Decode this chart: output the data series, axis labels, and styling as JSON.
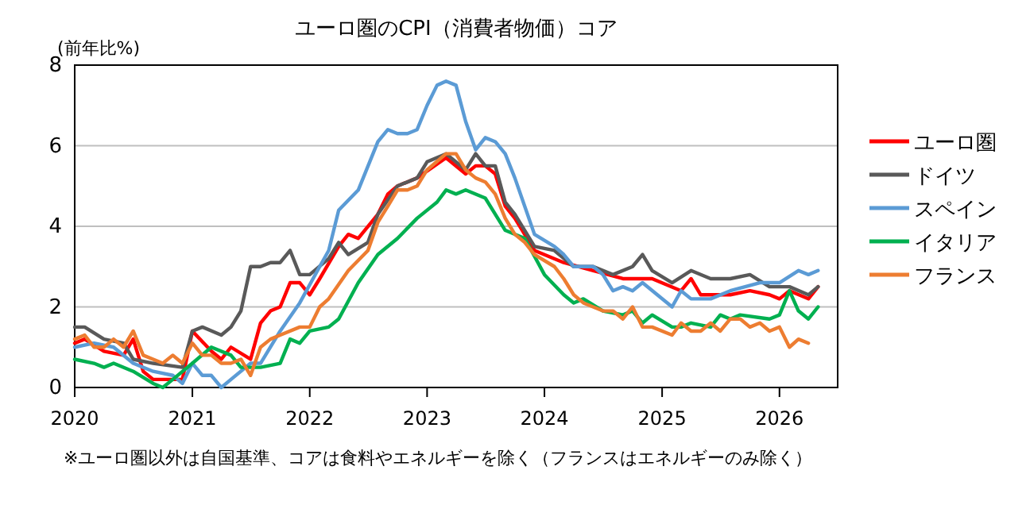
{
  "chart_data": {
    "type": "line",
    "title": "ユーロ圏のCPI（消費者物価）コア",
    "ylabel": "(前年比%)",
    "xlim": [
      "2020-01",
      "2026-07"
    ],
    "xticks": [
      "2020",
      "2021",
      "2022",
      "2023",
      "2024",
      "2025",
      "2026"
    ],
    "ylim": [
      0,
      8
    ],
    "yticks": [
      0,
      2,
      4,
      6,
      8
    ],
    "grid": "y",
    "legend": "right",
    "marker": "none",
    "line_style": "solid",
    "annotations": [
      "※ユーロ圏以外は自国基準、コアは食料やエネルギーを除く（フランスはエネルギーのみ除く）"
    ],
    "series": [
      {
        "name": "ユーロ圏",
        "color": "#ff0000",
        "x": [
          "2020-01",
          "2020-02",
          "2020-04",
          "2020-06",
          "2020-07",
          "2020-08",
          "2020-09",
          "2020-12",
          "2021-01",
          "2021-03",
          "2021-04",
          "2021-05",
          "2021-07",
          "2021-08",
          "2021-09",
          "2021-10",
          "2021-11",
          "2021-12",
          "2022-01",
          "2022-02",
          "2022-04",
          "2022-05",
          "2022-06",
          "2022-08",
          "2022-09",
          "2022-10",
          "2022-12",
          "2023-03",
          "2023-05",
          "2023-06",
          "2023-07",
          "2023-08",
          "2023-09",
          "2023-10",
          "2023-12",
          "2024-03",
          "2024-06",
          "2024-09",
          "2024-12",
          "2025-03",
          "2025-04",
          "2025-05",
          "2025-08",
          "2025-10",
          "2025-12",
          "2026-01",
          "2026-02",
          "2026-04",
          "2026-05"
        ],
        "values": [
          1.1,
          1.2,
          0.9,
          0.8,
          1.2,
          0.4,
          0.2,
          0.2,
          1.4,
          0.9,
          0.7,
          1.0,
          0.7,
          1.6,
          1.9,
          2.0,
          2.6,
          2.6,
          2.3,
          2.7,
          3.5,
          3.8,
          3.7,
          4.3,
          4.8,
          5.0,
          5.2,
          5.7,
          5.3,
          5.5,
          5.5,
          5.3,
          4.5,
          4.2,
          3.4,
          3.1,
          2.9,
          2.7,
          2.7,
          2.4,
          2.7,
          2.3,
          2.3,
          2.4,
          2.3,
          2.2,
          2.4,
          2.2,
          2.5
        ]
      },
      {
        "name": "ドイツ",
        "color": "#595959",
        "x": [
          "2020-01",
          "2020-02",
          "2020-04",
          "2020-06",
          "2020-07",
          "2020-09",
          "2020-12",
          "2021-01",
          "2021-02",
          "2021-04",
          "2021-05",
          "2021-06",
          "2021-07",
          "2021-08",
          "2021-09",
          "2021-10",
          "2021-11",
          "2021-12",
          "2022-01",
          "2022-03",
          "2022-04",
          "2022-05",
          "2022-07",
          "2022-08",
          "2022-10",
          "2022-12",
          "2023-01",
          "2023-03",
          "2023-05",
          "2023-06",
          "2023-07",
          "2023-08",
          "2023-09",
          "2023-10",
          "2023-12",
          "2024-02",
          "2024-04",
          "2024-06",
          "2024-08",
          "2024-10",
          "2024-11",
          "2024-12",
          "2025-02",
          "2025-04",
          "2025-06",
          "2025-08",
          "2025-10",
          "2025-12",
          "2026-02",
          "2026-04",
          "2026-05"
        ],
        "values": [
          1.5,
          1.5,
          1.2,
          1.1,
          0.7,
          0.6,
          0.5,
          1.4,
          1.5,
          1.3,
          1.5,
          1.9,
          3.0,
          3.0,
          3.1,
          3.1,
          3.4,
          2.8,
          2.8,
          3.2,
          3.6,
          3.3,
          3.6,
          4.3,
          5.0,
          5.2,
          5.6,
          5.8,
          5.4,
          5.8,
          5.5,
          5.5,
          4.6,
          4.3,
          3.5,
          3.4,
          3.0,
          3.0,
          2.8,
          3.0,
          3.3,
          2.9,
          2.6,
          2.9,
          2.7,
          2.7,
          2.8,
          2.5,
          2.5,
          2.3,
          2.5
        ]
      },
      {
        "name": "スペイン",
        "color": "#5b9bd5",
        "x": [
          "2020-01",
          "2020-03",
          "2020-05",
          "2020-07",
          "2020-09",
          "2020-11",
          "2020-12",
          "2021-01",
          "2021-02",
          "2021-03",
          "2021-04",
          "2021-05",
          "2021-07",
          "2021-08",
          "2021-10",
          "2021-12",
          "2022-02",
          "2022-03",
          "2022-04",
          "2022-06",
          "2022-08",
          "2022-09",
          "2022-10",
          "2022-11",
          "2022-12",
          "2023-01",
          "2023-02",
          "2023-03",
          "2023-04",
          "2023-05",
          "2023-06",
          "2023-07",
          "2023-08",
          "2023-09",
          "2023-10",
          "2023-12",
          "2024-02",
          "2024-03",
          "2024-04",
          "2024-06",
          "2024-07",
          "2024-08",
          "2024-09",
          "2024-10",
          "2024-11",
          "2025-02",
          "2025-03",
          "2025-04",
          "2025-06",
          "2025-08",
          "2025-11",
          "2026-01",
          "2026-03",
          "2026-04",
          "2026-05"
        ],
        "values": [
          1.0,
          1.1,
          1.0,
          0.6,
          0.4,
          0.3,
          0.1,
          0.6,
          0.3,
          0.3,
          0.0,
          0.2,
          0.6,
          0.6,
          1.4,
          2.1,
          3.0,
          3.4,
          4.4,
          4.9,
          6.1,
          6.4,
          6.3,
          6.3,
          6.4,
          7.0,
          7.5,
          7.6,
          7.5,
          6.6,
          5.9,
          6.2,
          6.1,
          5.8,
          5.2,
          3.8,
          3.5,
          3.3,
          3.0,
          3.0,
          2.8,
          2.4,
          2.5,
          2.4,
          2.6,
          2.0,
          2.4,
          2.2,
          2.2,
          2.4,
          2.6,
          2.6,
          2.9,
          2.8,
          2.9
        ]
      },
      {
        "name": "イタリア",
        "color": "#00b050",
        "x": [
          "2020-01",
          "2020-03",
          "2020-04",
          "2020-05",
          "2020-07",
          "2020-09",
          "2020-10",
          "2020-11",
          "2021-01",
          "2021-03",
          "2021-05",
          "2021-06",
          "2021-08",
          "2021-10",
          "2021-11",
          "2021-12",
          "2022-01",
          "2022-03",
          "2022-04",
          "2022-06",
          "2022-08",
          "2022-10",
          "2022-12",
          "2023-02",
          "2023-03",
          "2023-04",
          "2023-05",
          "2023-07",
          "2023-09",
          "2023-11",
          "2024-01",
          "2024-03",
          "2024-04",
          "2024-05",
          "2024-07",
          "2024-09",
          "2024-10",
          "2024-11",
          "2024-12",
          "2025-02",
          "2025-03",
          "2025-04",
          "2025-06",
          "2025-07",
          "2025-08",
          "2025-09",
          "2025-12",
          "2026-01",
          "2026-02",
          "2026-03",
          "2026-04",
          "2026-05"
        ],
        "values": [
          0.7,
          0.6,
          0.5,
          0.6,
          0.4,
          0.1,
          0.0,
          0.2,
          0.6,
          1.0,
          0.8,
          0.5,
          0.5,
          0.6,
          1.2,
          1.1,
          1.4,
          1.5,
          1.7,
          2.6,
          3.3,
          3.7,
          4.2,
          4.6,
          4.9,
          4.8,
          4.9,
          4.7,
          3.9,
          3.7,
          2.8,
          2.3,
          2.1,
          2.2,
          1.9,
          1.8,
          1.9,
          1.6,
          1.8,
          1.5,
          1.5,
          1.6,
          1.5,
          1.8,
          1.7,
          1.8,
          1.7,
          1.8,
          2.4,
          1.9,
          1.7,
          2.0
        ]
      },
      {
        "name": "フランス",
        "color": "#ed7d31",
        "x": [
          "2020-01",
          "2020-02",
          "2020-03",
          "2020-04",
          "2020-05",
          "2020-06",
          "2020-07",
          "2020-08",
          "2020-09",
          "2020-10",
          "2020-11",
          "2020-12",
          "2021-01",
          "2021-02",
          "2021-03",
          "2021-04",
          "2021-05",
          "2021-06",
          "2021-07",
          "2021-08",
          "2021-09",
          "2021-10",
          "2021-12",
          "2022-01",
          "2022-02",
          "2022-03",
          "2022-05",
          "2022-07",
          "2022-08",
          "2022-09",
          "2022-10",
          "2022-11",
          "2022-12",
          "2023-01",
          "2023-03",
          "2023-04",
          "2023-05",
          "2023-06",
          "2023-07",
          "2023-08",
          "2023-09",
          "2023-10",
          "2023-11",
          "2023-12",
          "2024-02",
          "2024-03",
          "2024-04",
          "2024-05",
          "2024-07",
          "2024-08",
          "2024-09",
          "2024-10",
          "2024-11",
          "2024-12",
          "2025-02",
          "2025-03",
          "2025-04",
          "2025-05",
          "2025-06",
          "2025-07",
          "2025-08",
          "2025-09",
          "2025-10",
          "2025-11",
          "2025-12",
          "2026-01",
          "2026-02",
          "2026-03",
          "2026-04"
        ],
        "values": [
          1.2,
          1.3,
          1.0,
          1.0,
          1.2,
          1.0,
          1.4,
          0.8,
          0.7,
          0.6,
          0.8,
          0.6,
          1.1,
          0.8,
          0.8,
          0.6,
          0.6,
          0.7,
          0.3,
          1.0,
          1.2,
          1.3,
          1.5,
          1.5,
          2.0,
          2.2,
          2.9,
          3.4,
          4.1,
          4.5,
          4.9,
          4.9,
          5.0,
          5.4,
          5.8,
          5.8,
          5.4,
          5.2,
          5.1,
          4.8,
          4.2,
          3.8,
          3.6,
          3.3,
          3.0,
          2.7,
          2.3,
          2.1,
          1.9,
          1.9,
          1.7,
          2.0,
          1.5,
          1.5,
          1.3,
          1.6,
          1.4,
          1.4,
          1.6,
          1.4,
          1.7,
          1.7,
          1.5,
          1.6,
          1.4,
          1.5,
          1.0,
          1.2,
          1.1
        ]
      }
    ]
  }
}
